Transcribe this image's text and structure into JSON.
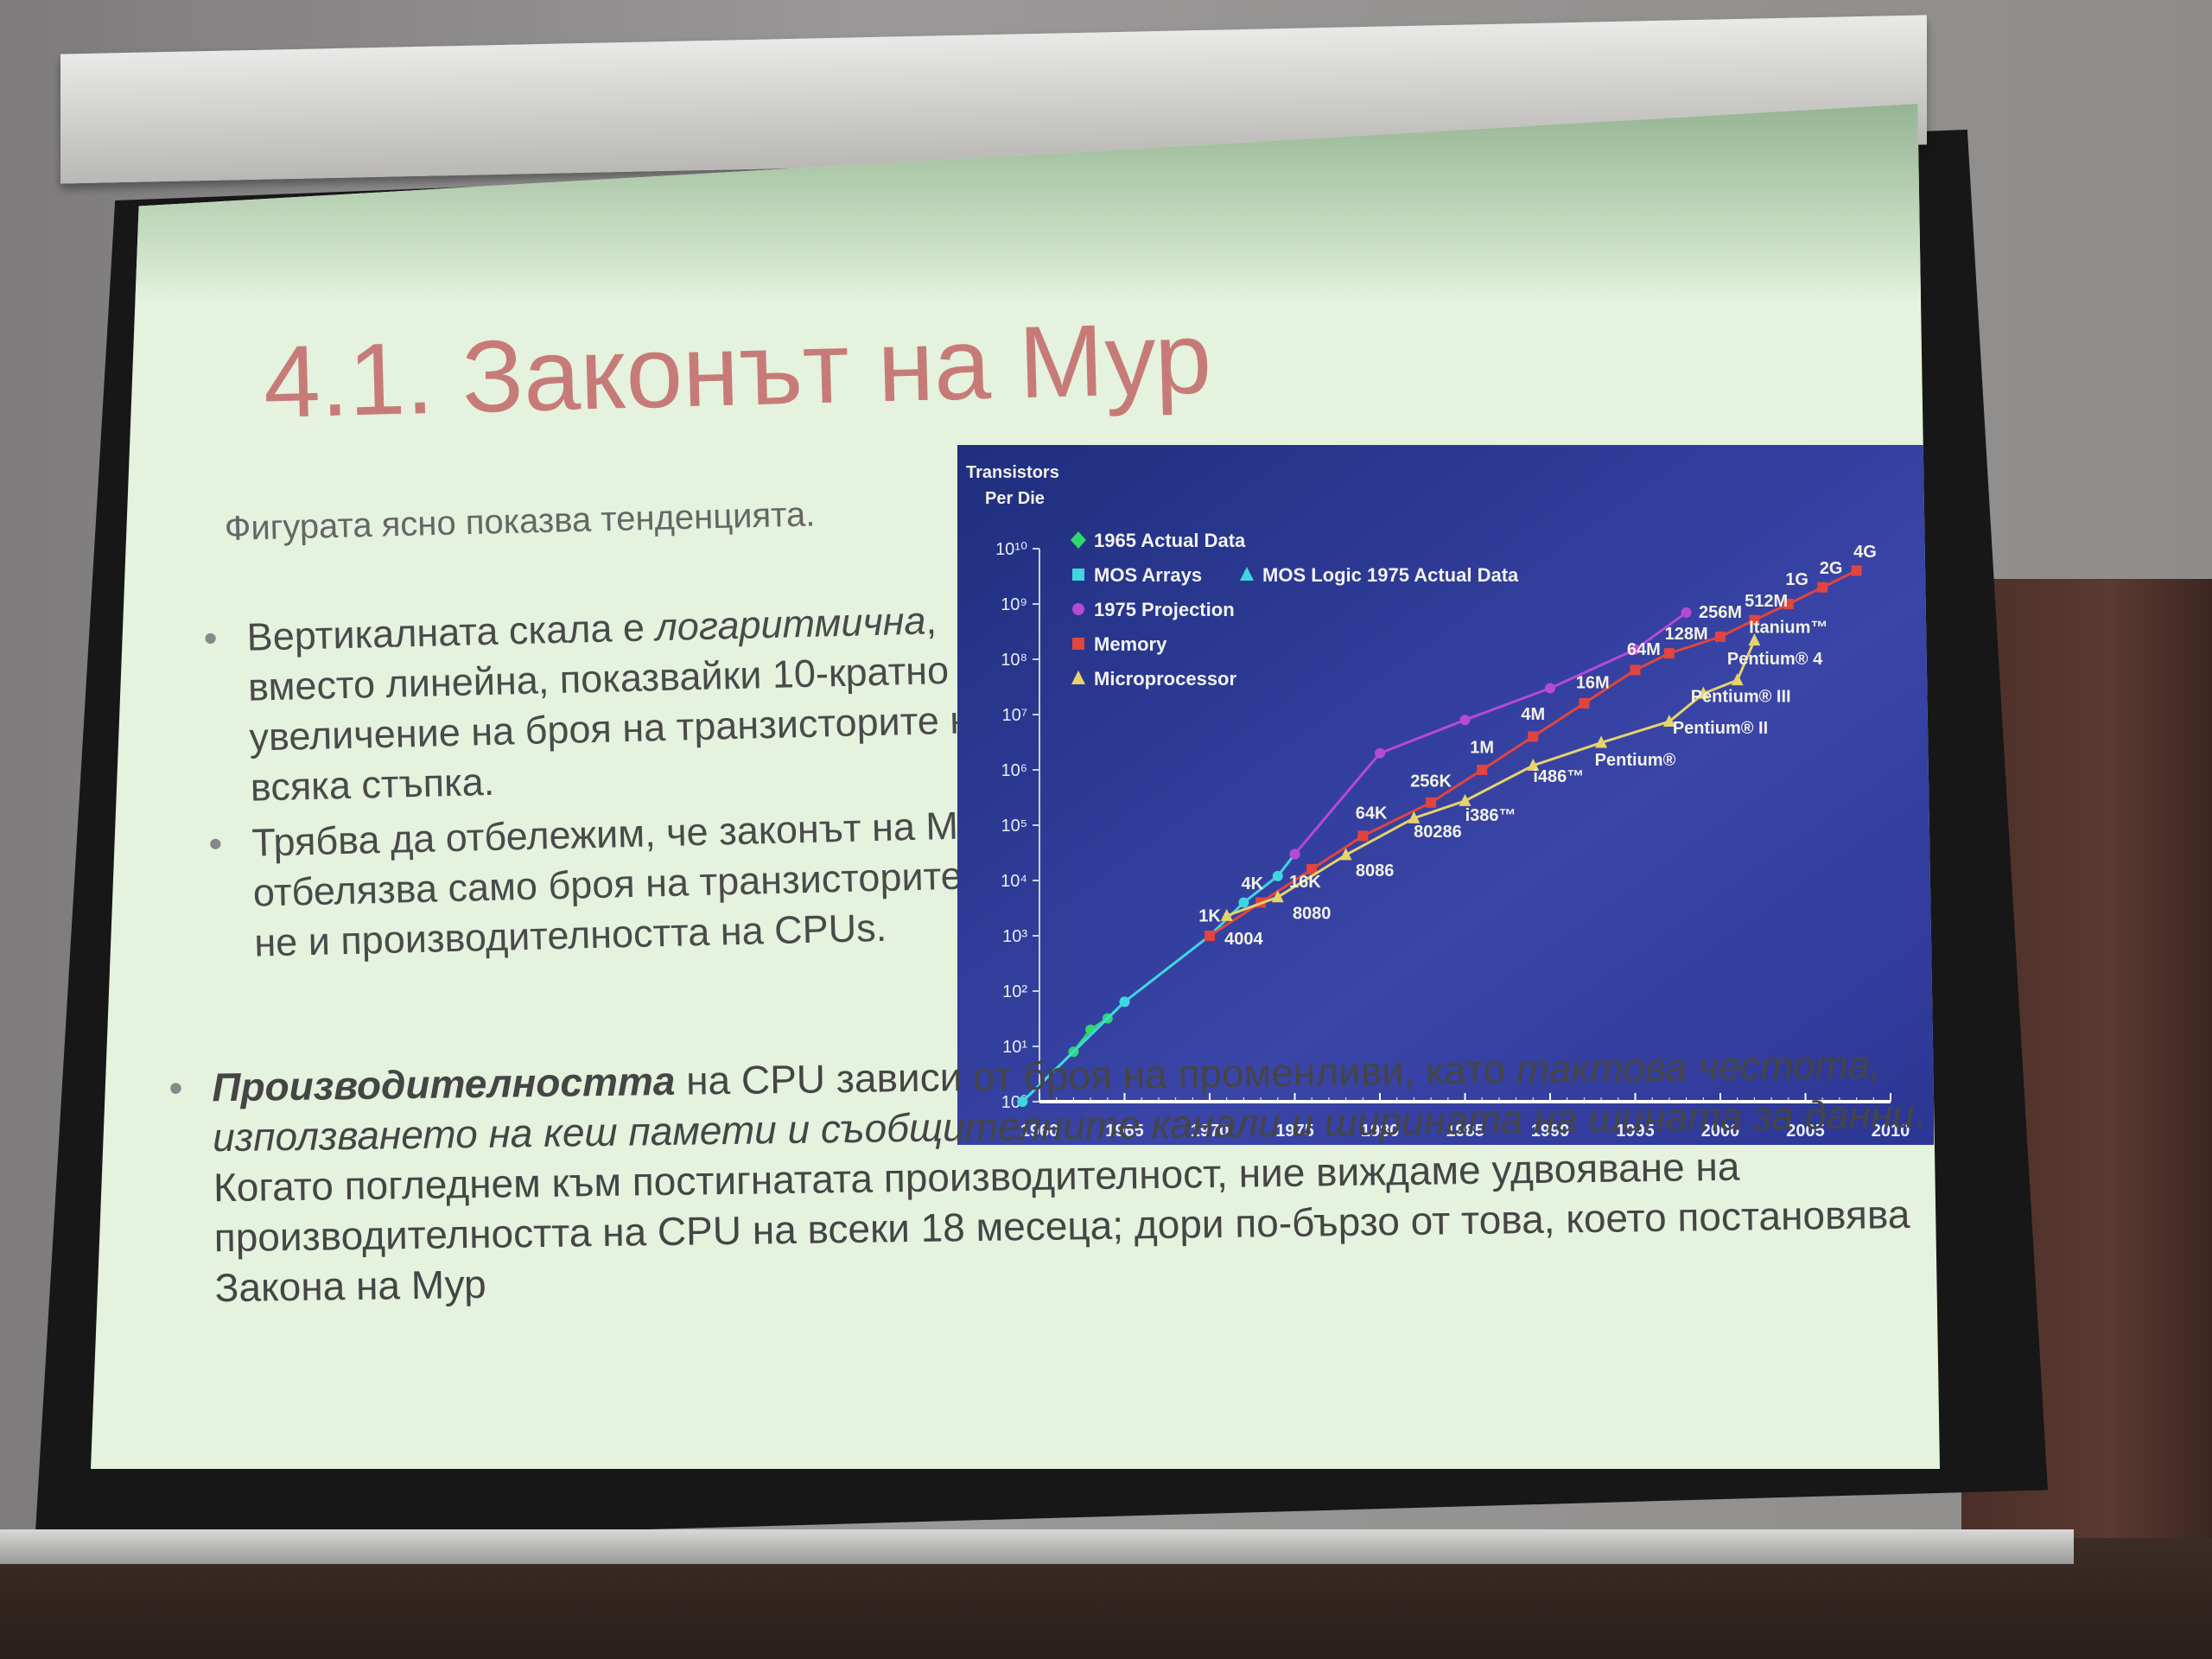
{
  "slide": {
    "title": "4.1. Законът на Мур",
    "intro": "Фигурата ясно показва тенденцията.",
    "bullet1_a": "Вертикалната скала е",
    "bullet1_em": "логаритмична",
    "bullet1_b": ", вместо линейна, показвайки 10-кратно увеличение на броя на транзисторите на всяка стъпка.",
    "bullet2": "Трябва да отбележим, че законът на Мур отбелязва само броя на транзисторите, не и производителността на CPUs.",
    "bottom_strong": "Производителността",
    "bottom_a": " на CPU зависи от броя на променливи, като ",
    "bottom_em": "тактова честота, използването на кеш памети и съобщителните канали и ширината на шината за данни",
    "bottom_b": ". Когато погледнем към постигнатата производителност, ние виждаме удвояване на производителността на CPU на всеки 18 месеца; дори по-бързо от това, което постановява Закона на Мур"
  },
  "chart_data": {
    "type": "line",
    "ylabel_line1": "Transistors",
    "ylabel_line2": "Per Die",
    "y_scale": "log",
    "ylim": [
      1,
      10000000000
    ],
    "xlim": [
      1960,
      2010
    ],
    "x_ticks": [
      "1960",
      "1965",
      "1970",
      "1975",
      "1980",
      "1985",
      "1990",
      "1995",
      "2000",
      "2005",
      "2010"
    ],
    "y_ticks": [
      "10⁰",
      "10¹",
      "10²",
      "10³",
      "10⁴",
      "10⁵",
      "10⁶",
      "10⁷",
      "10⁸",
      "10⁹",
      "10¹⁰"
    ],
    "legend": [
      {
        "label": "1965 Actual Data",
        "color": "#2fd86b",
        "marker": "diamond"
      },
      {
        "label": "MOS Arrays",
        "color": "#3fd6e0",
        "marker": "square"
      },
      {
        "label": "MOS Logic 1975 Actual Data",
        "color": "#3fd6e0",
        "marker": "triangle"
      },
      {
        "label": "1975 Projection",
        "color": "#b54ad6",
        "marker": "circle"
      },
      {
        "label": "Memory",
        "color": "#e0453f",
        "marker": "square"
      },
      {
        "label": "Microprocessor",
        "color": "#e6d36a",
        "marker": "triangle"
      }
    ],
    "legend_position": "top-left",
    "series": [
      {
        "key": "actual1965",
        "color": "#2fd86b",
        "points": [
          [
            1959,
            1
          ],
          [
            1962,
            8
          ],
          [
            1963,
            20
          ],
          [
            1964,
            32
          ],
          [
            1965,
            64
          ]
        ]
      },
      {
        "key": "mos",
        "color": "#3fd6e0",
        "points": [
          [
            1959,
            1
          ],
          [
            1965,
            64
          ],
          [
            1970,
            1000
          ],
          [
            1972,
            4000
          ],
          [
            1974,
            12000
          ],
          [
            1975,
            30000
          ]
        ]
      },
      {
        "key": "projection",
        "color": "#b54ad6",
        "points": [
          [
            1975,
            30000
          ],
          [
            1980,
            2000000
          ],
          [
            1985,
            8000000
          ],
          [
            1990,
            30000000
          ],
          [
            1995,
            150000000
          ],
          [
            1998,
            700000000
          ]
        ]
      },
      {
        "key": "memory",
        "color": "#e0453f",
        "points": [
          [
            1970,
            1000
          ],
          [
            1973,
            4000
          ],
          [
            1976,
            16000
          ],
          [
            1979,
            64000
          ],
          [
            1983,
            256000
          ],
          [
            1986,
            1000000
          ],
          [
            1989,
            4000000
          ],
          [
            1992,
            16000000
          ],
          [
            1995,
            64000000
          ],
          [
            1997,
            128000000
          ],
          [
            2000,
            256000000
          ],
          [
            2002,
            512000000
          ],
          [
            2004,
            1000000000
          ],
          [
            2006,
            2000000000
          ],
          [
            2008,
            4000000000
          ]
        ]
      },
      {
        "key": "micro",
        "color": "#e6d36a",
        "points": [
          [
            1971,
            2300
          ],
          [
            1974,
            5000
          ],
          [
            1978,
            29000
          ],
          [
            1982,
            134000
          ],
          [
            1985,
            275000
          ],
          [
            1989,
            1200000
          ],
          [
            1993,
            3100000
          ],
          [
            1997,
            7500000
          ],
          [
            1999,
            24000000
          ],
          [
            2001,
            42000000
          ],
          [
            2002,
            220000000
          ]
        ]
      }
    ],
    "data_labels": [
      {
        "text": "1K",
        "x": 1970,
        "y": 1800
      },
      {
        "text": "4K",
        "x": 1972.5,
        "y": 7000
      },
      {
        "text": "16K",
        "x": 1975.6,
        "y": 7500
      },
      {
        "text": "64K",
        "x": 1979.5,
        "y": 130000
      },
      {
        "text": "256K",
        "x": 1983,
        "y": 500000
      },
      {
        "text": "1M",
        "x": 1986,
        "y": 2000000
      },
      {
        "text": "4M",
        "x": 1989,
        "y": 8000000
      },
      {
        "text": "16M",
        "x": 1992.5,
        "y": 30000000
      },
      {
        "text": "64M",
        "x": 1995.5,
        "y": 120000000
      },
      {
        "text": "128M",
        "x": 1998,
        "y": 230000000
      },
      {
        "text": "256M",
        "x": 2000,
        "y": 560000000
      },
      {
        "text": "512M",
        "x": 2002.7,
        "y": 900000000
      },
      {
        "text": "1G",
        "x": 2004.5,
        "y": 2200000000
      },
      {
        "text": "2G",
        "x": 2006.5,
        "y": 3500000000
      },
      {
        "text": "4G",
        "x": 2008.5,
        "y": 7000000000
      },
      {
        "text": "4004",
        "x": 1972,
        "y": 700
      },
      {
        "text": "8080",
        "x": 1976,
        "y": 2000
      },
      {
        "text": "8086",
        "x": 1979.7,
        "y": 12000
      },
      {
        "text": "80286",
        "x": 1983.4,
        "y": 60000
      },
      {
        "text": "i386™",
        "x": 1986.5,
        "y": 120000
      },
      {
        "text": "i486™",
        "x": 1990.5,
        "y": 600000
      },
      {
        "text": "Pentium®",
        "x": 1995,
        "y": 1200000
      },
      {
        "text": "Pentium® II",
        "x": 2000,
        "y": 4500000
      },
      {
        "text": "Pentium® III",
        "x": 2001.2,
        "y": 17000000
      },
      {
        "text": "Pentium® 4",
        "x": 2003.2,
        "y": 80000000
      },
      {
        "text": "Itanium™",
        "x": 2004,
        "y": 300000000
      }
    ]
  }
}
